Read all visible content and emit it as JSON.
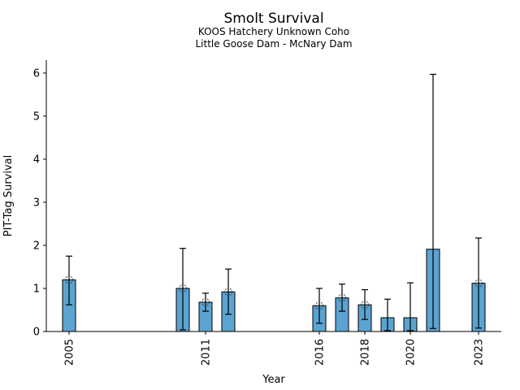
{
  "title": "Smolt Survival",
  "subtitle1": "KOOS Hatchery Unknown Coho",
  "subtitle2": "Little Goose Dam - McNary Dam",
  "chart_data": {
    "type": "bar",
    "title": "Smolt Survival",
    "subtitle1": "KOOS Hatchery Unknown Coho",
    "subtitle2": "Little Goose Dam - McNary Dam",
    "xlabel": "Year",
    "ylabel": "PIT-Tag Survival",
    "xlim": [
      2004,
      2024
    ],
    "ylim": [
      0,
      6.3
    ],
    "yticks": [
      0,
      1,
      2,
      3,
      4,
      5,
      6
    ],
    "xticks": [
      2005,
      2011,
      2016,
      2018,
      2020,
      2023
    ],
    "grid": false,
    "legend": "none",
    "bar_color": "#5ba3d0",
    "bar_edge_color": "#000000",
    "error_bar_color": "#000000",
    "marker_color": "#3a3a3a",
    "bars": [
      {
        "year": 2005,
        "value": 1.2,
        "ci_low": 0.62,
        "ci_high": 1.75,
        "marker": true
      },
      {
        "year": 2010,
        "value": 1.0,
        "ci_low": 0.04,
        "ci_high": 1.93,
        "marker": true
      },
      {
        "year": 2011,
        "value": 0.68,
        "ci_low": 0.47,
        "ci_high": 0.89,
        "marker": true
      },
      {
        "year": 2012,
        "value": 0.92,
        "ci_low": 0.4,
        "ci_high": 1.45,
        "marker": true
      },
      {
        "year": 2016,
        "value": 0.6,
        "ci_low": 0.19,
        "ci_high": 1.0,
        "marker": true
      },
      {
        "year": 2017,
        "value": 0.78,
        "ci_low": 0.47,
        "ci_high": 1.1,
        "marker": true
      },
      {
        "year": 2018,
        "value": 0.62,
        "ci_low": 0.28,
        "ci_high": 0.97,
        "marker": true
      },
      {
        "year": 2019,
        "value": 0.32,
        "ci_low": 0.02,
        "ci_high": 0.75,
        "marker": false
      },
      {
        "year": 2020,
        "value": 0.32,
        "ci_low": 0.02,
        "ci_high": 1.13,
        "marker": false
      },
      {
        "year": 2021,
        "value": 1.91,
        "ci_low": 0.07,
        "ci_high": 5.97,
        "marker": false
      },
      {
        "year": 2023,
        "value": 1.12,
        "ci_low": 0.08,
        "ci_high": 2.17,
        "marker": true
      }
    ]
  }
}
